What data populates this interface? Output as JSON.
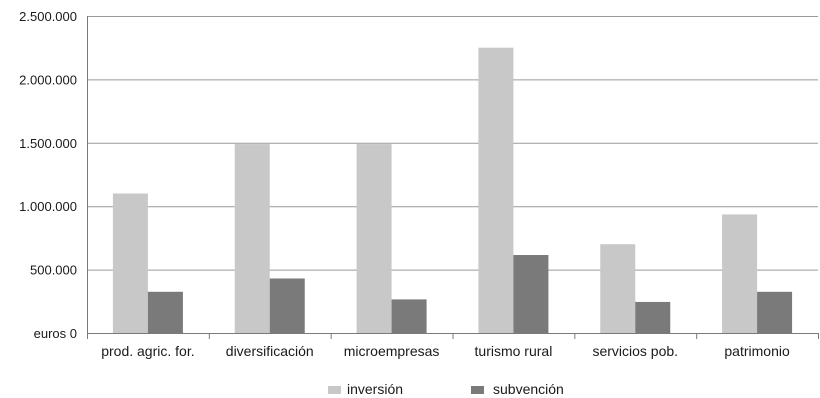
{
  "chart_data": {
    "type": "bar",
    "categories": [
      "prod. agric. for.",
      "diversificación",
      "microempresas",
      "turismo rural",
      "servicios pob.",
      "patrimonio"
    ],
    "series": [
      {
        "name": "inversión",
        "values": [
          1100000,
          1490000,
          1490000,
          2250000,
          700000,
          935000
        ],
        "color": "#c8c8c8"
      },
      {
        "name": "subvención",
        "values": [
          325000,
          430000,
          265000,
          615000,
          245000,
          325000
        ],
        "color": "#7a7a7a"
      }
    ],
    "yticks": [
      {
        "value": 0,
        "label": "euros 0"
      },
      {
        "value": 500000,
        "label": "500.000"
      },
      {
        "value": 1000000,
        "label": "1.000.000"
      },
      {
        "value": 1500000,
        "label": "1.500.000"
      },
      {
        "value": 2000000,
        "label": "2.000.000"
      },
      {
        "value": 2500000,
        "label": "2.500.000"
      }
    ],
    "ylim": [
      0,
      2500000
    ],
    "grid": true,
    "legend_position": "bottom-center",
    "title": "",
    "xlabel": "",
    "ylabel": ""
  }
}
